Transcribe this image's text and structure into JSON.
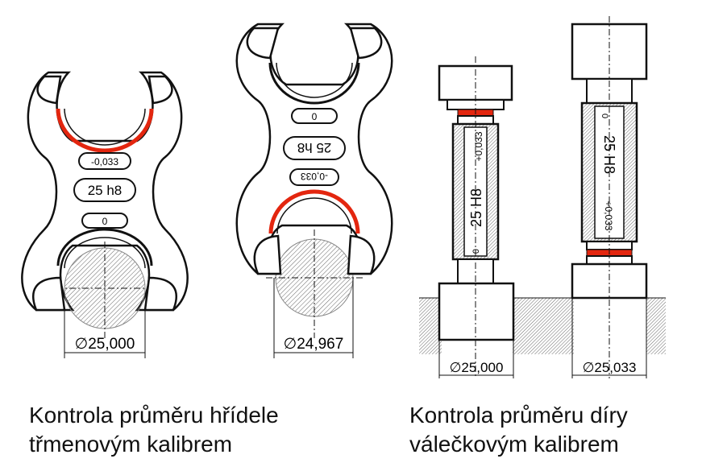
{
  "colors": {
    "line": "#111111",
    "contact": "#e3260f",
    "hatch": "#555555",
    "shaded": "#d9d9d9"
  },
  "snap_gauge_go": {
    "tolerance_label": "-0,033",
    "size_label": "25 h8",
    "zero_label": "0",
    "dimension": "∅25,000"
  },
  "snap_gauge_nogo": {
    "zero_label": "0",
    "size_label": "25 h8",
    "tolerance_label": "-0,033",
    "dimension": "∅24,967"
  },
  "plug_gauge_go": {
    "zero_label": "0",
    "size_label": "25 H8",
    "tolerance_label": "+0,033",
    "dimension": "∅25,000"
  },
  "plug_gauge_nogo": {
    "zero_label": "0",
    "size_label": "25 H8",
    "tolerance_label": "+0,033",
    "dimension": "∅25,033"
  },
  "captions": {
    "left_line1": "Kontrola průměru hřídele",
    "left_line2": "třmenovým kalibrem",
    "right_line1": "Kontrola průměru díry",
    "right_line2": "válečkovým kalibrem"
  }
}
